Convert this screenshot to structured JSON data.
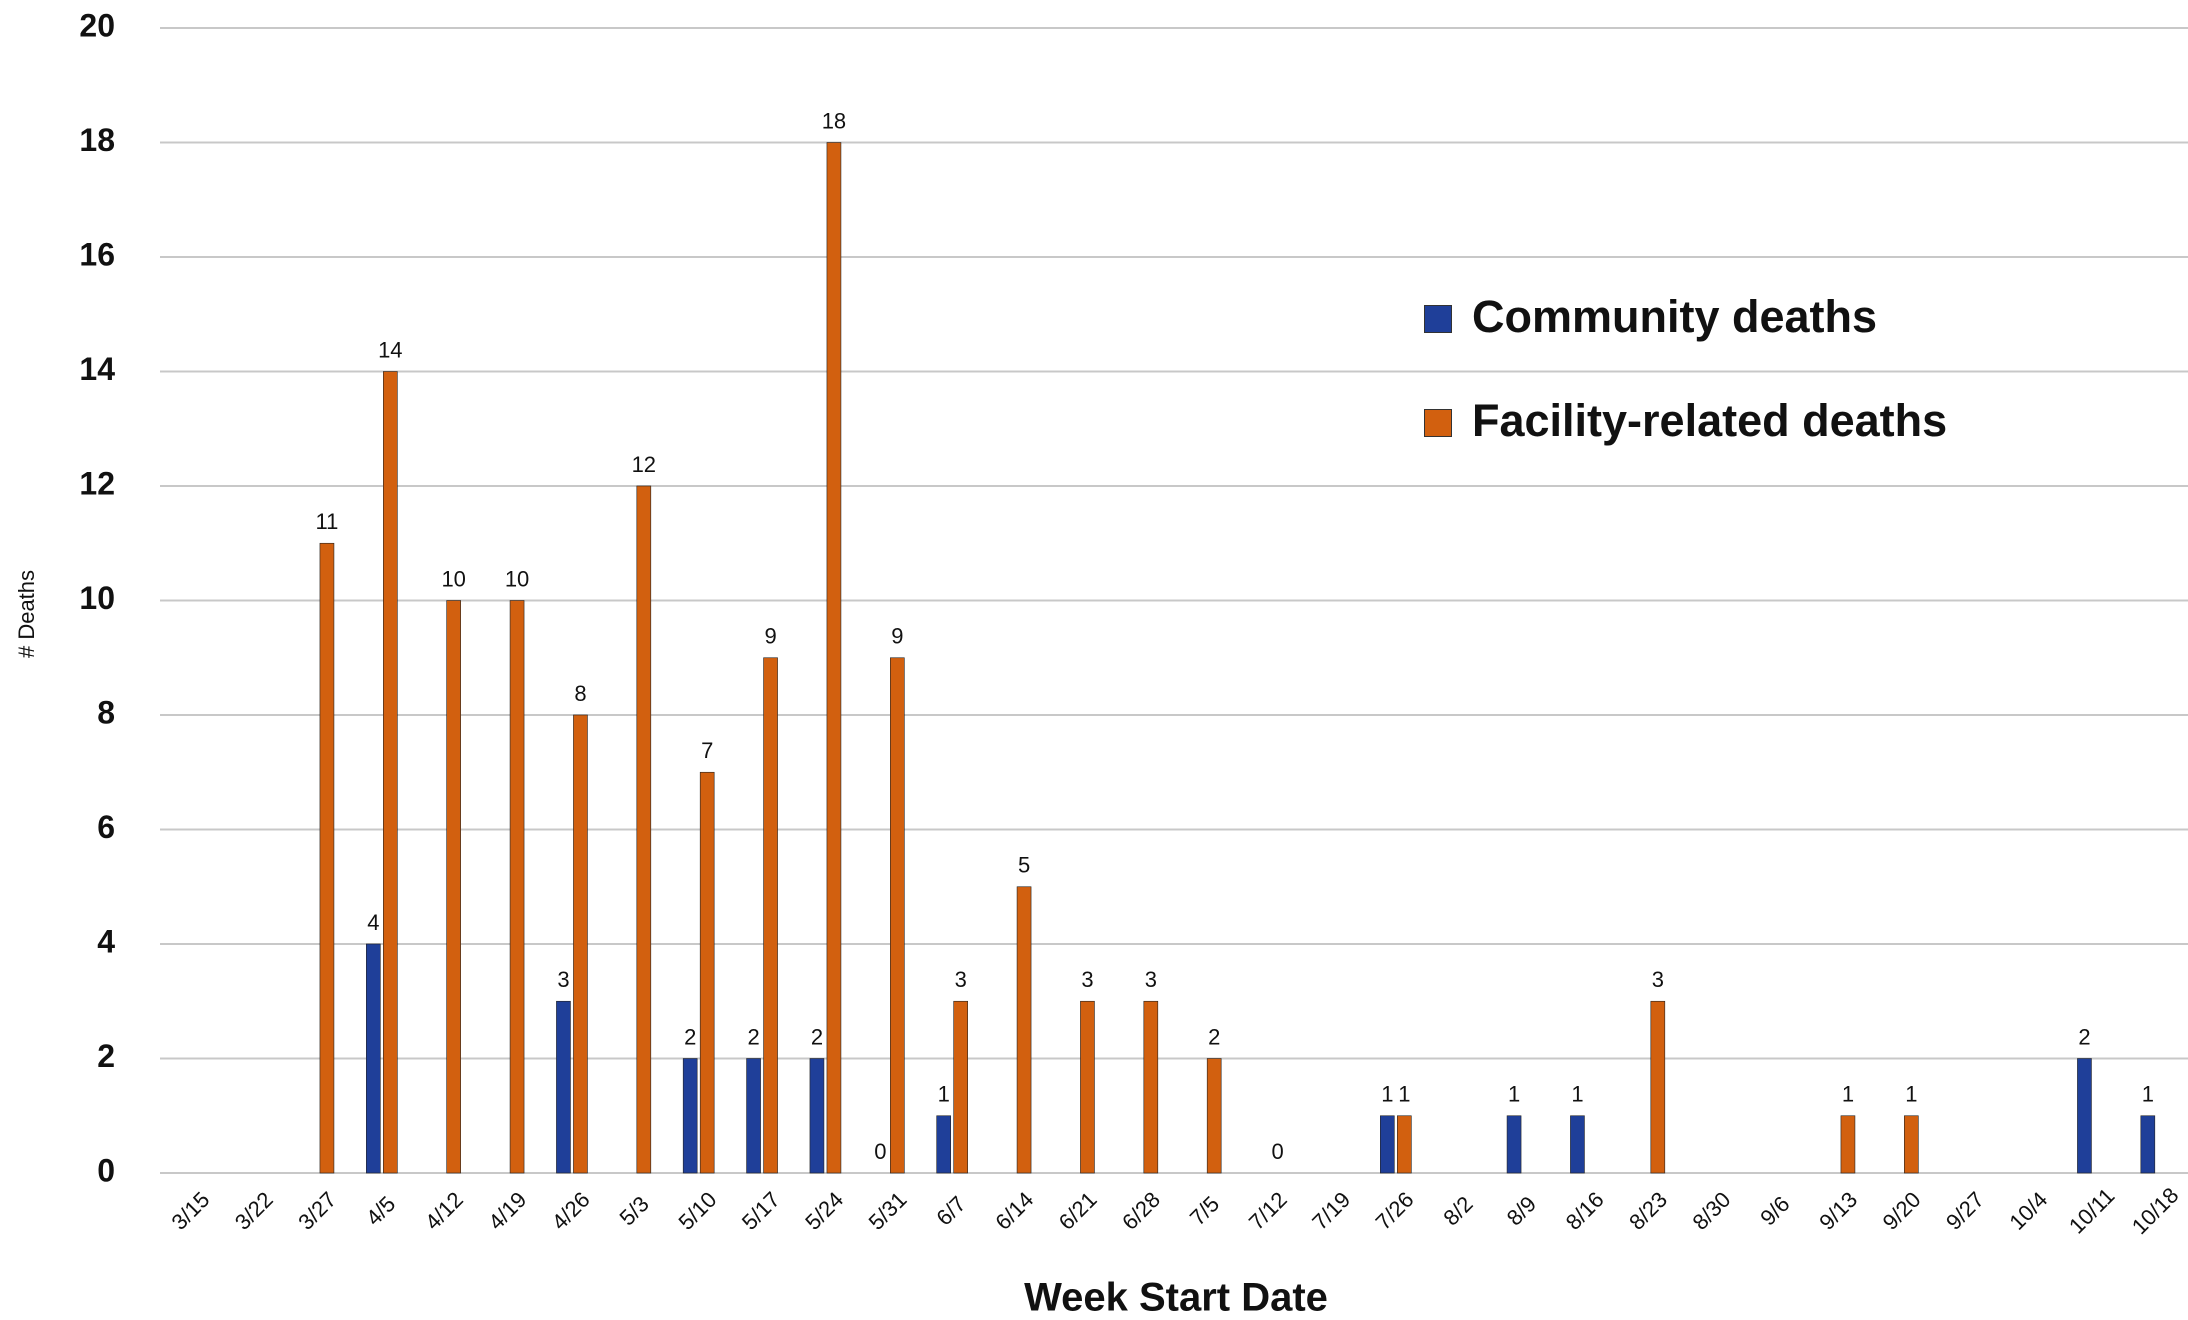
{
  "chart_data": {
    "type": "bar",
    "x_label": "Week Start Date",
    "y_label": "# Deaths",
    "categories": [
      "3/15",
      "3/22",
      "3/27",
      "4/5",
      "4/12",
      "4/19",
      "4/26",
      "5/3",
      "5/10",
      "5/17",
      "5/24",
      "5/31",
      "6/7",
      "6/14",
      "6/21",
      "6/28",
      "7/5",
      "7/12",
      "7/19",
      "7/26",
      "8/2",
      "8/9",
      "8/16",
      "8/23",
      "8/30",
      "9/6",
      "9/13",
      "9/20",
      "9/27",
      "10/4",
      "10/11",
      "10/18"
    ],
    "series": [
      {
        "name": "Community deaths",
        "color": "#1f3f99",
        "values": [
          null,
          null,
          null,
          4,
          null,
          null,
          3,
          null,
          2,
          2,
          2,
          0,
          1,
          null,
          null,
          null,
          null,
          null,
          null,
          1,
          null,
          1,
          1,
          null,
          null,
          null,
          null,
          null,
          null,
          null,
          2,
          1
        ]
      },
      {
        "name": "Facility-related deaths",
        "color": "#d2600f",
        "values": [
          null,
          null,
          11,
          14,
          10,
          10,
          8,
          12,
          7,
          9,
          18,
          9,
          3,
          5,
          3,
          3,
          2,
          0,
          null,
          1,
          null,
          null,
          null,
          3,
          null,
          null,
          1,
          1,
          null,
          null,
          null,
          null
        ]
      }
    ],
    "ylim": [
      0,
      20
    ],
    "yticks": [
      0,
      2,
      4,
      6,
      8,
      10,
      12,
      14,
      16,
      18,
      20
    ],
    "grid": true
  }
}
